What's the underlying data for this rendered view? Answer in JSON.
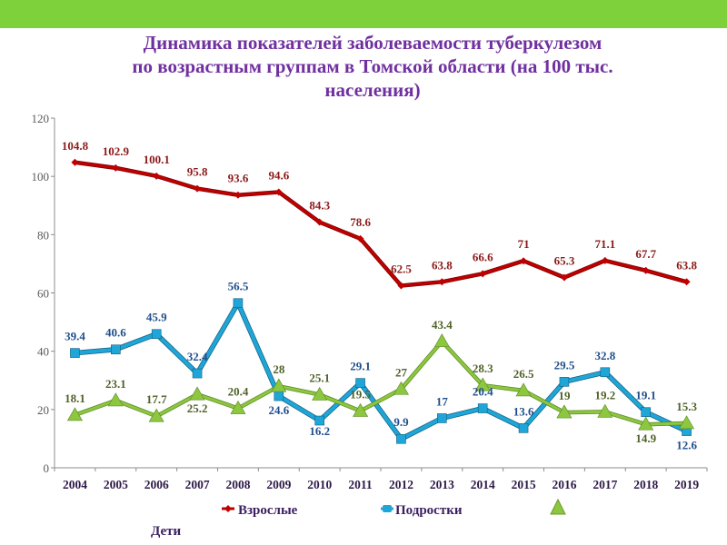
{
  "title": {
    "line1": "Динамика показателей заболеваемости туберкулезом",
    "line2": "по возрастным группам в Томской области (на 100 тыс.",
    "line3": "населения)"
  },
  "colors": {
    "band": "#7fd13b",
    "title": "#7030a0",
    "adults_line": "#c00000",
    "adults_label": "#8b1a1a",
    "teens_line": "#1fa6d8",
    "teens_label": "#1f4e8c",
    "children_line": "#8dc63f",
    "children_label": "#4f6228"
  },
  "chart_data": {
    "type": "line",
    "title": "Динамика показателей заболеваемости туберкулезом по возрастным группам в Томской области (на 100 тыс. населения)",
    "categories": [
      "2004",
      "2005",
      "2006",
      "2007",
      "2008",
      "2009",
      "2010",
      "2011",
      "2012",
      "2013",
      "2014",
      "2015",
      "2016",
      "2017",
      "2018",
      "2019"
    ],
    "ylim": [
      0,
      120
    ],
    "yticks": [
      "0",
      "20",
      "40",
      "60",
      "80",
      "100",
      "120"
    ],
    "grid": false,
    "legend_position": "bottom",
    "series": [
      {
        "name": "Взрослые",
        "marker": "diamond",
        "values": [
          104.8,
          102.9,
          100.1,
          95.8,
          93.6,
          94.6,
          84.3,
          78.6,
          62.5,
          63.8,
          66.6,
          71,
          65.3,
          71.1,
          67.7,
          63.8
        ],
        "labels": [
          "104.8",
          "102.9",
          "100.1",
          "95.8",
          "93.6",
          "94.6",
          "84.3",
          "78.6",
          "62.5",
          "63.8",
          "66.6",
          "71",
          "65.3",
          "71.1",
          "67.7",
          "63.8"
        ]
      },
      {
        "name": "Подростки",
        "marker": "square",
        "values": [
          39.4,
          40.6,
          45.9,
          32.4,
          56.5,
          24.6,
          16.2,
          29.1,
          9.9,
          17,
          20.4,
          13.6,
          29.5,
          32.8,
          19.1,
          12.6
        ],
        "labels": [
          "39.4",
          "40.6",
          "45.9",
          "32.4",
          "56.5",
          "24.6",
          "16.2",
          "29.1",
          "9.9",
          "17",
          "20.4",
          "13.6",
          "29.5",
          "32.8",
          "19.1",
          "12.6"
        ]
      },
      {
        "name": "Дети",
        "marker": "triangle",
        "values": [
          18.1,
          23.1,
          17.7,
          25.2,
          20.4,
          28,
          25.1,
          19.5,
          27,
          43.4,
          28.3,
          26.5,
          19,
          19.2,
          14.9,
          15.3
        ],
        "labels": [
          "18.1",
          "23.1",
          "17.7",
          "25.2",
          "20.4",
          "28",
          "25.1",
          "19.5",
          "27",
          "43.4",
          "28.3",
          "26.5",
          "19",
          "19.2",
          "14.9",
          "15.3"
        ]
      }
    ]
  }
}
